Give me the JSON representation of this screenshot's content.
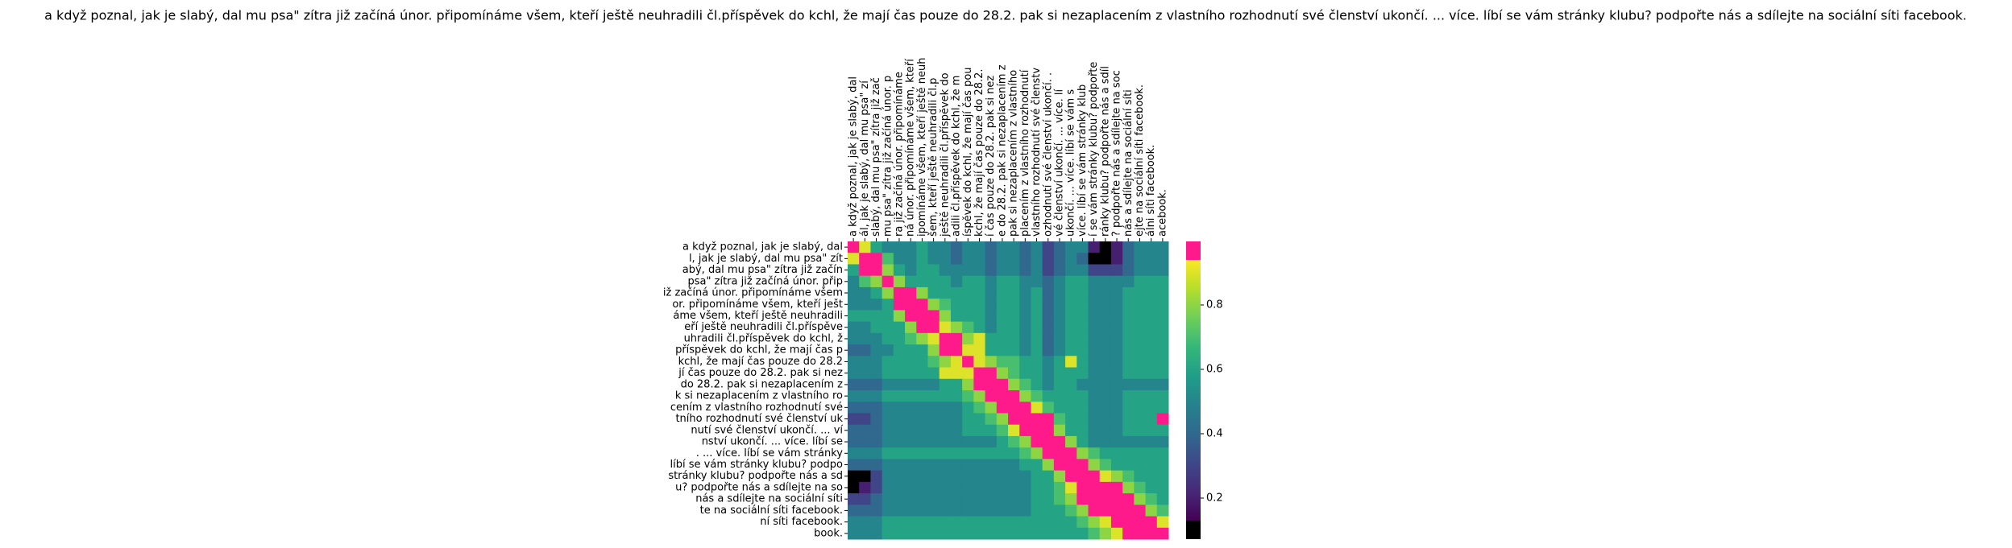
{
  "chart_data": {
    "type": "heatmap",
    "title": "a když poznal, jak je slabý, dal mu psa\" zítra již začíná únor. připomínáme všem, kteří ještě neuhradili čl.příspěvek do kchl, že mají čas pouze do 28.2. pak si nezaplacením z vlastního rozhodnutí své členství ukončí. ... více. líbí se vám stránky klubu? podpořte nás a sdílejte na sociální síti facebook.",
    "x_labels": [
      "a když poznal, jak je slabý, dal",
      "ál, jak je slabý, dal mu psa\" zí",
      "slabý, dal mu psa\" zítra již zač",
      "mu psa\" zítra již začíná únor. p",
      "ra již začíná únor. připomínáme",
      "ná únor. připomínáme všem, kteří",
      "ipomínáme všem, kteří ještě neuh",
      "šem, kteří ještě neuhradili čl.p",
      "ještě neuhradili čl.příspěvek do",
      "adili čl.příspěvek do kchl, že m",
      "íspěvek do kchl, že mají čas pou",
      "kchl, že mají čas pouze do 28.2.",
      "í čas pouze do 28.2. pak si nez",
      "e do 28.2. pak si nezaplacením z",
      "pak si nezaplacením z vlastního",
      "placením z vlastního rozhodnutí",
      "vlastního rozhodnutí své členstv",
      "ozhodnutí své členství ukončí. .",
      "vé členství ukončí. ... více. lí",
      "ukončí. ... více. líbí se vám s",
      "více. líbí se vám stránky klub",
      "í se vám stránky klubu? podpořte",
      "ránky klubu? podpořte nás a sdíl",
      "? podpořte nás a sdílejte na soc",
      "nás a sdílejte na sociální síti",
      "ejte na sociální síti facebook.",
      "álni síti facebook.",
      "acebook."
    ],
    "y_labels": [
      "a když poznal, jak je slabý, dal",
      "l, jak je slabý, dal mu psa\" zít",
      "abý, dal mu psa\" zítra již začín",
      "psa\" zítra již začíná únor. přip",
      "iž začíná únor. připomínáme všem",
      "or. připomínáme všem, kteří ješt",
      "áme všem, kteří ještě neuhradili",
      "eří ještě neuhradili čl.příspěve",
      "uhradili čl.příspěvek do kchl, ž",
      "příspěvek do kchl, že mají čas p",
      "kchl, že mají čas pouze do 28.2",
      "jí čas pouze do 28.2. pak si nez",
      "do 28.2. pak si nezaplacením z",
      "k si nezaplacením z vlastního ro",
      "cením z vlastního rozhodnutí své",
      "tního rozhodnutí své členství uk",
      "nutí své členství ukončí. ... ví",
      "nství ukončí. ... více. líbí se",
      ". ... více. líbí se vám stránky",
      "líbí se vám stránky klubu? podpo",
      "stránky klubu? podpořte nás a sd",
      "u? podpořte nás a sdílejte na so",
      "nás a sdílejte na sociální síti",
      "te na sociální síti facebook.",
      "ní síti facebook.",
      "book."
    ],
    "values": [
      [
        1.0,
        0.9,
        0.6,
        0.5,
        0.5,
        0.5,
        0.6,
        0.5,
        0.5,
        0.4,
        0.5,
        0.5,
        0.4,
        0.5,
        0.5,
        0.4,
        0.5,
        0.3,
        0.4,
        0.5,
        0.5,
        0.2,
        0.1,
        0.2,
        0.4,
        0.5,
        0.5,
        0.5
      ],
      [
        0.9,
        1.0,
        1.0,
        0.7,
        0.5,
        0.5,
        0.6,
        0.5,
        0.5,
        0.4,
        0.5,
        0.5,
        0.4,
        0.5,
        0.5,
        0.4,
        0.5,
        0.3,
        0.4,
        0.5,
        0.4,
        0.1,
        0.1,
        0.2,
        0.4,
        0.5,
        0.5,
        0.5
      ],
      [
        0.6,
        1.0,
        1.0,
        0.8,
        0.6,
        0.5,
        0.6,
        0.6,
        0.5,
        0.5,
        0.5,
        0.5,
        0.4,
        0.5,
        0.5,
        0.4,
        0.5,
        0.3,
        0.4,
        0.5,
        0.5,
        0.3,
        0.3,
        0.3,
        0.4,
        0.5,
        0.5,
        0.5
      ],
      [
        0.5,
        0.7,
        0.8,
        1.0,
        0.8,
        0.6,
        0.6,
        0.6,
        0.6,
        0.5,
        0.6,
        0.6,
        0.5,
        0.6,
        0.6,
        0.5,
        0.5,
        0.4,
        0.5,
        0.6,
        0.6,
        0.5,
        0.5,
        0.5,
        0.5,
        0.6,
        0.6,
        0.6
      ],
      [
        0.5,
        0.5,
        0.6,
        0.8,
        1.0,
        1.0,
        0.8,
        0.6,
        0.6,
        0.6,
        0.6,
        0.6,
        0.5,
        0.6,
        0.6,
        0.5,
        0.6,
        0.4,
        0.5,
        0.6,
        0.6,
        0.5,
        0.5,
        0.5,
        0.6,
        0.6,
        0.6,
        0.6
      ],
      [
        0.5,
        0.5,
        0.5,
        0.6,
        1.0,
        1.0,
        1.0,
        0.8,
        0.7,
        0.6,
        0.6,
        0.6,
        0.5,
        0.6,
        0.6,
        0.5,
        0.6,
        0.4,
        0.5,
        0.6,
        0.6,
        0.5,
        0.5,
        0.5,
        0.6,
        0.6,
        0.6,
        0.6
      ],
      [
        0.6,
        0.6,
        0.6,
        0.6,
        0.8,
        1.0,
        1.0,
        1.0,
        0.8,
        0.6,
        0.6,
        0.6,
        0.5,
        0.6,
        0.6,
        0.5,
        0.6,
        0.4,
        0.5,
        0.6,
        0.6,
        0.5,
        0.5,
        0.5,
        0.6,
        0.6,
        0.6,
        0.6
      ],
      [
        0.5,
        0.5,
        0.6,
        0.6,
        0.6,
        0.8,
        1.0,
        1.0,
        0.9,
        0.8,
        0.7,
        0.6,
        0.5,
        0.6,
        0.6,
        0.5,
        0.6,
        0.4,
        0.5,
        0.6,
        0.6,
        0.5,
        0.5,
        0.5,
        0.6,
        0.6,
        0.6,
        0.6
      ],
      [
        0.5,
        0.5,
        0.5,
        0.6,
        0.6,
        0.7,
        0.8,
        0.9,
        1.0,
        1.0,
        0.8,
        0.9,
        0.6,
        0.6,
        0.6,
        0.5,
        0.6,
        0.4,
        0.5,
        0.6,
        0.6,
        0.5,
        0.5,
        0.5,
        0.6,
        0.6,
        0.6,
        0.6
      ],
      [
        0.4,
        0.4,
        0.5,
        0.5,
        0.6,
        0.6,
        0.6,
        0.8,
        1.0,
        1.0,
        0.9,
        0.9,
        0.6,
        0.6,
        0.6,
        0.5,
        0.6,
        0.4,
        0.5,
        0.6,
        0.6,
        0.5,
        0.5,
        0.5,
        0.6,
        0.6,
        0.6,
        0.6
      ],
      [
        0.5,
        0.5,
        0.5,
        0.6,
        0.6,
        0.6,
        0.6,
        0.7,
        0.8,
        0.9,
        1.0,
        0.9,
        0.8,
        0.7,
        0.7,
        0.6,
        0.6,
        0.5,
        0.6,
        0.9,
        0.6,
        0.5,
        0.5,
        0.5,
        0.6,
        0.6,
        0.6,
        0.6
      ],
      [
        0.5,
        0.5,
        0.5,
        0.6,
        0.6,
        0.6,
        0.6,
        0.6,
        0.9,
        0.9,
        0.9,
        1.0,
        1.0,
        0.8,
        0.7,
        0.6,
        0.6,
        0.5,
        0.6,
        0.6,
        0.6,
        0.5,
        0.5,
        0.5,
        0.6,
        0.6,
        0.6,
        0.6
      ],
      [
        0.4,
        0.4,
        0.4,
        0.5,
        0.5,
        0.5,
        0.5,
        0.5,
        0.6,
        0.6,
        0.8,
        1.0,
        1.0,
        1.0,
        0.8,
        0.7,
        0.6,
        0.5,
        0.6,
        0.6,
        0.5,
        0.5,
        0.5,
        0.5,
        0.5,
        0.5,
        0.5,
        0.5
      ],
      [
        0.5,
        0.5,
        0.5,
        0.6,
        0.6,
        0.6,
        0.6,
        0.6,
        0.6,
        0.6,
        0.7,
        0.8,
        1.0,
        1.0,
        1.0,
        0.8,
        0.7,
        0.6,
        0.6,
        0.6,
        0.6,
        0.5,
        0.5,
        0.5,
        0.6,
        0.6,
        0.6,
        0.6
      ],
      [
        0.4,
        0.4,
        0.4,
        0.5,
        0.5,
        0.5,
        0.5,
        0.5,
        0.5,
        0.5,
        0.6,
        0.7,
        0.8,
        1.0,
        1.0,
        1.0,
        0.9,
        0.7,
        0.6,
        0.6,
        0.6,
        0.5,
        0.5,
        0.5,
        0.6,
        0.6,
        0.6,
        0.6
      ],
      [
        0.3,
        0.3,
        0.4,
        0.5,
        0.5,
        0.5,
        0.5,
        0.5,
        0.5,
        0.5,
        0.6,
        0.6,
        0.7,
        0.8,
        1.0,
        1.0,
        1.0,
        1.0,
        0.7,
        0.6,
        0.6,
        0.5,
        0.5,
        0.5,
        0.6,
        0.6,
        0.6,
        1.0
      ],
      [
        0.4,
        0.4,
        0.4,
        0.5,
        0.5,
        0.5,
        0.5,
        0.5,
        0.5,
        0.5,
        0.6,
        0.6,
        0.6,
        0.7,
        0.9,
        1.0,
        1.0,
        1.0,
        0.8,
        0.6,
        0.6,
        0.5,
        0.5,
        0.5,
        0.6,
        0.6,
        0.6,
        0.6
      ],
      [
        0.4,
        0.4,
        0.4,
        0.5,
        0.5,
        0.5,
        0.5,
        0.5,
        0.5,
        0.5,
        0.5,
        0.5,
        0.5,
        0.6,
        0.7,
        0.8,
        1.0,
        1.0,
        1.0,
        0.8,
        0.6,
        0.5,
        0.5,
        0.5,
        0.5,
        0.5,
        0.5,
        0.5
      ],
      [
        0.5,
        0.5,
        0.5,
        0.6,
        0.6,
        0.6,
        0.6,
        0.6,
        0.6,
        0.6,
        0.6,
        0.6,
        0.6,
        0.6,
        0.6,
        0.7,
        0.8,
        1.0,
        1.0,
        1.0,
        0.8,
        0.7,
        0.6,
        0.6,
        0.6,
        0.6,
        0.6,
        0.6
      ],
      [
        0.4,
        0.4,
        0.4,
        0.5,
        0.5,
        0.5,
        0.5,
        0.5,
        0.5,
        0.5,
        0.5,
        0.5,
        0.5,
        0.5,
        0.5,
        0.6,
        0.6,
        0.8,
        1.0,
        1.0,
        1.0,
        0.8,
        0.7,
        0.6,
        0.6,
        0.6,
        0.6,
        0.6
      ],
      [
        0.1,
        0.1,
        0.3,
        0.5,
        0.5,
        0.5,
        0.5,
        0.5,
        0.5,
        0.5,
        0.5,
        0.5,
        0.5,
        0.5,
        0.5,
        0.5,
        0.6,
        0.6,
        0.8,
        1.0,
        1.0,
        1.0,
        0.9,
        0.8,
        0.7,
        0.6,
        0.6,
        0.6
      ],
      [
        0.1,
        0.2,
        0.3,
        0.5,
        0.5,
        0.5,
        0.5,
        0.5,
        0.5,
        0.5,
        0.5,
        0.5,
        0.5,
        0.5,
        0.5,
        0.5,
        0.6,
        0.6,
        0.7,
        0.9,
        1.0,
        1.0,
        1.0,
        1.0,
        0.8,
        0.7,
        0.6,
        0.6
      ],
      [
        0.3,
        0.3,
        0.4,
        0.5,
        0.5,
        0.5,
        0.5,
        0.5,
        0.5,
        0.5,
        0.5,
        0.5,
        0.5,
        0.5,
        0.5,
        0.5,
        0.6,
        0.6,
        0.7,
        0.8,
        1.0,
        1.0,
        1.0,
        1.0,
        1.0,
        0.8,
        0.7,
        0.6
      ],
      [
        0.4,
        0.4,
        0.4,
        0.5,
        0.5,
        0.5,
        0.5,
        0.5,
        0.5,
        0.5,
        0.5,
        0.5,
        0.5,
        0.5,
        0.5,
        0.5,
        0.6,
        0.6,
        0.6,
        0.7,
        0.8,
        1.0,
        1.0,
        1.0,
        1.0,
        1.0,
        0.8,
        0.7
      ],
      [
        0.5,
        0.5,
        0.5,
        0.6,
        0.6,
        0.6,
        0.6,
        0.6,
        0.6,
        0.6,
        0.6,
        0.6,
        0.6,
        0.6,
        0.6,
        0.6,
        0.6,
        0.6,
        0.6,
        0.6,
        0.7,
        0.8,
        0.9,
        1.0,
        1.0,
        1.0,
        1.0,
        0.9
      ],
      [
        0.5,
        0.5,
        0.5,
        0.6,
        0.6,
        0.6,
        0.6,
        0.6,
        0.6,
        0.6,
        0.6,
        0.6,
        0.6,
        0.6,
        0.6,
        0.6,
        0.6,
        0.6,
        0.6,
        0.6,
        0.6,
        0.7,
        0.8,
        0.9,
        1.0,
        1.0,
        1.0,
        1.0
      ]
    ],
    "colormap": "viridis",
    "over_color": "#ff1a8c",
    "under_color": "#000000",
    "zlim": [
      0.13,
      0.94
    ],
    "zticks": [
      0.2,
      0.4,
      0.6,
      0.8
    ]
  }
}
